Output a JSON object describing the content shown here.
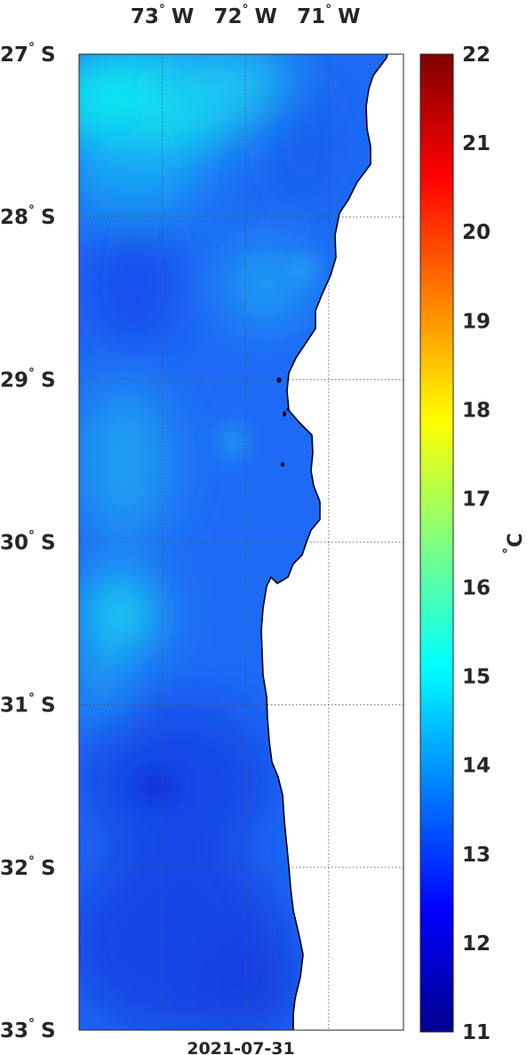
{
  "map": {
    "lon_ticks": [
      {
        "deg": "73",
        "hemi": "W",
        "value": -73
      },
      {
        "deg": "72",
        "hemi": "W",
        "value": -72
      },
      {
        "deg": "71",
        "hemi": "W",
        "value": -71
      }
    ],
    "lat_ticks": [
      {
        "deg": "27",
        "hemi": "S",
        "value": -27
      },
      {
        "deg": "28",
        "hemi": "S",
        "value": -28
      },
      {
        "deg": "29",
        "hemi": "S",
        "value": -29
      },
      {
        "deg": "30",
        "hemi": "S",
        "value": -30
      },
      {
        "deg": "31",
        "hemi": "S",
        "value": -31
      },
      {
        "deg": "32",
        "hemi": "S",
        "value": -32
      },
      {
        "deg": "33",
        "hemi": "S",
        "value": -33
      }
    ],
    "lon_range": [
      -74.0,
      -70.1
    ],
    "lat_range": [
      -33.0,
      -27.0
    ],
    "date": "2021-07-31",
    "grid": true
  },
  "colorbar": {
    "ticks": [
      "22",
      "21",
      "20",
      "19",
      "18",
      "17",
      "16",
      "15",
      "14",
      "13",
      "12",
      "11"
    ],
    "min": 11,
    "max": 22,
    "unit_degree": "°",
    "unit_letter": "C",
    "colormap": "jet"
  },
  "colors": {
    "land": "#ffffff",
    "coast": "#000000",
    "grid": "#555555",
    "text": "#262626"
  }
}
